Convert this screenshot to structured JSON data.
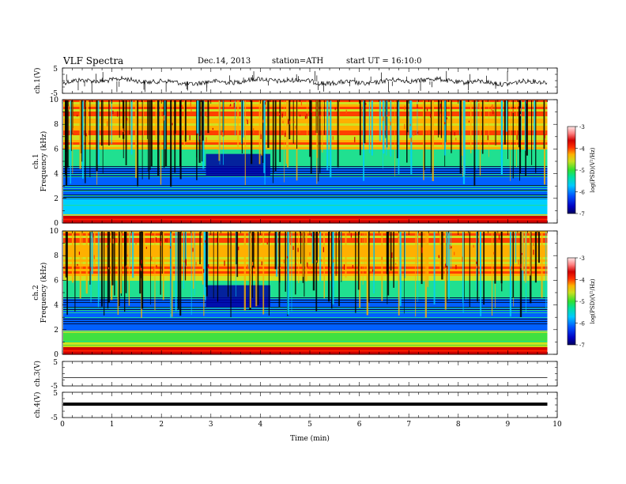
{
  "header": {
    "title": "VLF  Spectra",
    "date": "Dec.14, 2013",
    "station": "station=ATH",
    "start": "start  UT =   16:10:0"
  },
  "chart_data": [
    {
      "type": "line",
      "ylabel": "ch.1(V)",
      "ylim": [
        -5,
        5
      ],
      "yticks": [
        "5",
        "-5"
      ]
    },
    {
      "type": "heatmap",
      "ylabel": "ch.1",
      "ylabel2": "Frequency  (kHz)",
      "ylim": [
        0,
        10
      ],
      "yticks": [
        "0",
        "2",
        "4",
        "6",
        "8",
        "10"
      ],
      "colorbar": {
        "label": "log(PSD)(V²/Hz)",
        "ticks": [
          "-3",
          "-4",
          "-5",
          "-6",
          "-7"
        ],
        "range": [
          -7,
          -3
        ]
      }
    },
    {
      "type": "heatmap",
      "ylabel": "ch.2",
      "ylabel2": "Frequency  (kHz)",
      "ylim": [
        0,
        10
      ],
      "yticks": [
        "0",
        "2",
        "4",
        "6",
        "8",
        "10"
      ],
      "colorbar": {
        "label": "log(PSD)(V²/Hz)",
        "ticks": [
          "-3",
          "-4",
          "-5",
          "-6",
          "-7"
        ],
        "range": [
          -7,
          -3
        ]
      }
    },
    {
      "type": "line",
      "ylabel": "ch.3(V)",
      "ylim": [
        -5,
        5
      ],
      "yticks": [
        "5",
        "-5"
      ]
    },
    {
      "type": "line",
      "ylabel": "ch.4(V)",
      "ylim": [
        -5,
        5
      ],
      "yticks": [
        "5",
        "-5"
      ]
    }
  ],
  "xaxis": {
    "label": "Time  (min)",
    "xlim": [
      0,
      10
    ],
    "ticks": [
      "0",
      "1",
      "2",
      "3",
      "4",
      "5",
      "6",
      "7",
      "8",
      "9",
      "10"
    ],
    "data_end": 9.8
  },
  "colors": {
    "scale": [
      "#0000a0",
      "#0060ff",
      "#00d0ff",
      "#20e090",
      "#40e040",
      "#d0e020",
      "#ffb000",
      "#ff4000",
      "#d00000",
      "#ff8080",
      "#ffd8d8"
    ],
    "trace": "#000000"
  }
}
